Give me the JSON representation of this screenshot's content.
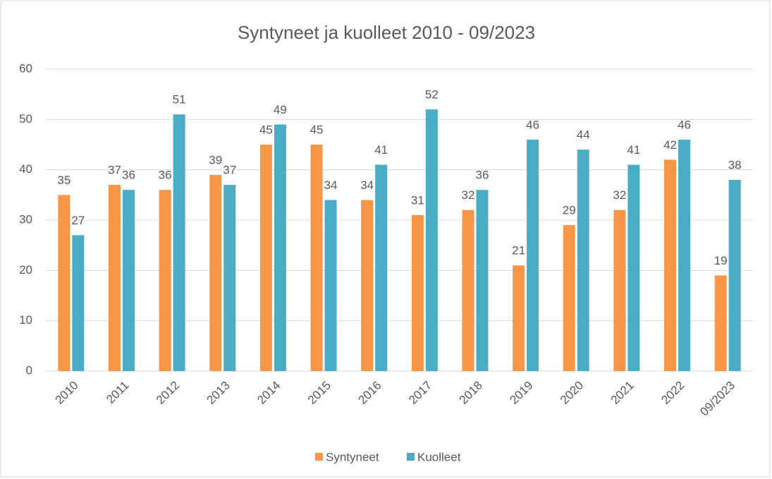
{
  "chart_data": {
    "type": "bar",
    "title": "Syntyneet ja kuolleet 2010 - 09/2023",
    "categories": [
      "2010",
      "2011",
      "2012",
      "2013",
      "2014",
      "2015",
      "2016",
      "2017",
      "2018",
      "2019",
      "2020",
      "2021",
      "2022",
      "09/2023"
    ],
    "series": [
      {
        "name": "Syntyneet",
        "color": "#f79646",
        "values": [
          35,
          37,
          36,
          39,
          45,
          45,
          34,
          31,
          32,
          21,
          29,
          32,
          42,
          19
        ]
      },
      {
        "name": "Kuolleet",
        "color": "#4bacc6",
        "values": [
          27,
          36,
          51,
          37,
          49,
          34,
          41,
          52,
          36,
          46,
          44,
          41,
          46,
          38
        ]
      }
    ],
    "ylim": [
      0,
      60
    ],
    "yticks": [
      0,
      10,
      20,
      30,
      40,
      50,
      60
    ],
    "grid": true,
    "legend": "bottom"
  }
}
